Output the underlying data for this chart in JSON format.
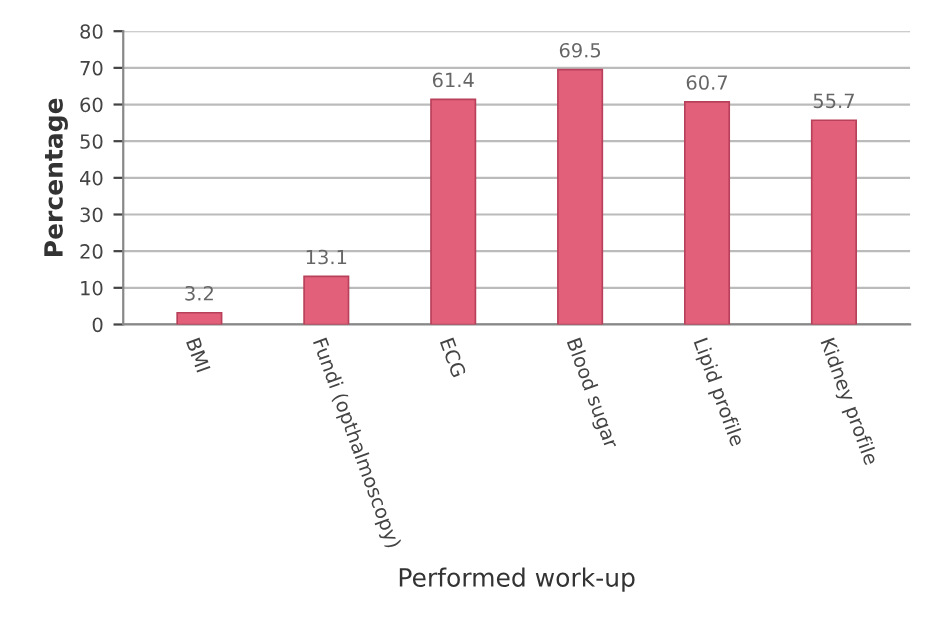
{
  "chart_data": {
    "type": "bar",
    "xlabel": "Performed work-up",
    "ylabel": "Percentage",
    "categories": [
      "BMI",
      "Fundi (opthalmoscopy)",
      "ECG",
      "Blood sugar",
      "Lipid profile",
      "Kidney profile"
    ],
    "values": [
      3.2,
      13.1,
      61.4,
      69.5,
      60.7,
      55.7
    ],
    "color": "#e2607a",
    "data_labels": true,
    "ylim": [
      0,
      80
    ],
    "yticks": [
      0,
      10,
      20,
      30,
      40,
      50,
      60,
      70,
      80
    ],
    "grid": "y"
  }
}
